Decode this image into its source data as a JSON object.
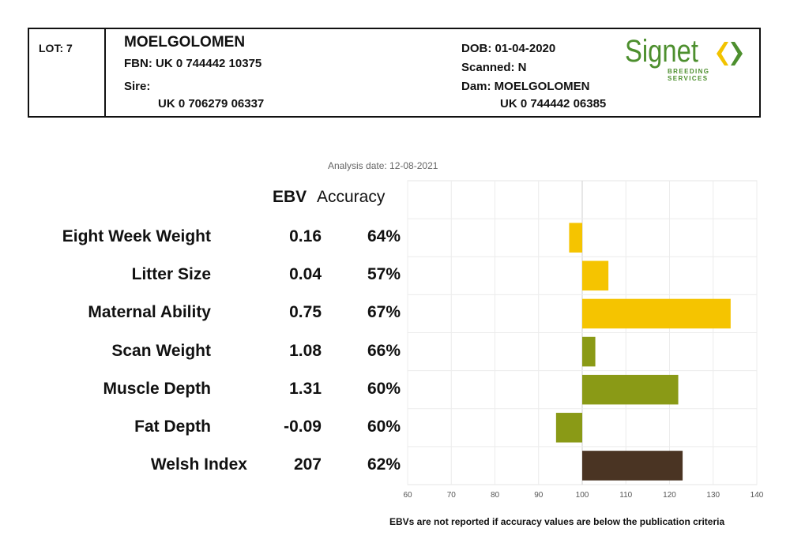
{
  "header": {
    "lot": "LOT: 7",
    "name": "MOELGOLOMEN",
    "fbn": "FBN: UK 0 744442 10375",
    "sire_label": "Sire:",
    "sire_value": "UK 0 706279 06337",
    "dob": "DOB: 01-04-2020",
    "scanned": "Scanned: N",
    "dam": "Dam: MOELGOLOMEN",
    "dam_value": "UK 0 744442 06385"
  },
  "logo": {
    "word": "Signet",
    "subtitle": "BREEDING SERVICES",
    "color": "#4d8f2e",
    "mark_color": "#f2c300"
  },
  "analysis_date": "Analysis date: 12-08-2021",
  "columns": {
    "ebv": "EBV",
    "accuracy": "Accuracy"
  },
  "footnote": "EBVs are not reported if accuracy values are below the publication criteria",
  "chart_data": {
    "type": "bar",
    "orientation": "horizontal",
    "categories": [
      "Eight Week Weight",
      "Litter Size",
      "Maternal Ability",
      "Scan Weight",
      "Muscle Depth",
      "Fat Depth",
      "Welsh Index"
    ],
    "ebv": [
      "0.16",
      "0.04",
      "0.75",
      "1.08",
      "1.31",
      "-0.09",
      "207"
    ],
    "accuracy": [
      "64%",
      "57%",
      "67%",
      "66%",
      "60%",
      "60%",
      "62%"
    ],
    "values": [
      97,
      106,
      134,
      103,
      122,
      94,
      123
    ],
    "baseline": 100,
    "colors": [
      "#f5c400",
      "#f5c400",
      "#f5c400",
      "#8a9a16",
      "#8a9a16",
      "#8a9a16",
      "#4a3423"
    ],
    "xlim": [
      60,
      140
    ],
    "xticks": [
      60,
      70,
      80,
      90,
      100,
      110,
      120,
      130,
      140
    ],
    "grid": true
  }
}
